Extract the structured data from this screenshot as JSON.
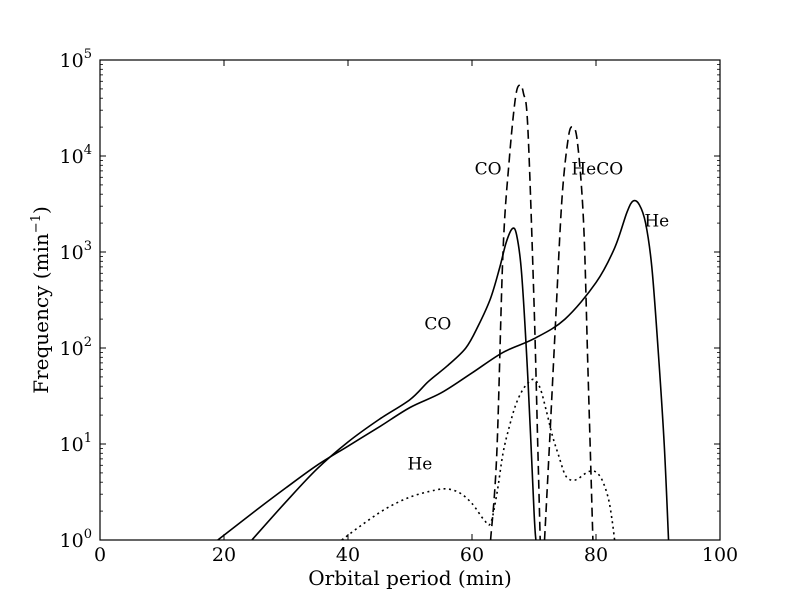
{
  "chart_data": {
    "type": "line",
    "title": "",
    "xlabel": "Orbital period (min)",
    "ylabel_main": "Frequency (min",
    "ylabel_sup": "−1",
    "ylabel_close": ")",
    "xlim": [
      0,
      100
    ],
    "ylim": [
      1,
      100000
    ],
    "yscale": "log",
    "grid": false,
    "legend": "none",
    "x_ticks": [
      {
        "value": 0,
        "label": "0"
      },
      {
        "value": 20,
        "label": "20"
      },
      {
        "value": 40,
        "label": "40"
      },
      {
        "value": 60,
        "label": "60"
      },
      {
        "value": 80,
        "label": "80"
      },
      {
        "value": 100,
        "label": "100"
      }
    ],
    "y_ticks": [
      {
        "value": 1,
        "base": "10",
        "exp": "0"
      },
      {
        "value": 10,
        "base": "10",
        "exp": "1"
      },
      {
        "value": 100,
        "base": "10",
        "exp": "2"
      },
      {
        "value": 1000,
        "base": "10",
        "exp": "3"
      },
      {
        "value": 10000,
        "base": "10",
        "exp": "4"
      },
      {
        "value": 100000,
        "base": "10",
        "exp": "5"
      }
    ],
    "series": [
      {
        "id": "he-solid",
        "style": "solid",
        "points": [
          [
            19,
            1
          ],
          [
            25,
            2
          ],
          [
            30,
            3.5
          ],
          [
            35,
            6
          ],
          [
            40,
            9.5
          ],
          [
            45,
            15
          ],
          [
            50,
            24
          ],
          [
            55,
            34
          ],
          [
            60,
            55
          ],
          [
            65,
            90
          ],
          [
            70,
            125
          ],
          [
            75,
            200
          ],
          [
            80,
            480
          ],
          [
            83,
            1100
          ],
          [
            85,
            2600
          ],
          [
            86,
            3400
          ],
          [
            87,
            3100
          ],
          [
            88,
            2000
          ],
          [
            89,
            700
          ],
          [
            90,
            100
          ],
          [
            91,
            10
          ],
          [
            91.7,
            1
          ]
        ]
      },
      {
        "id": "co-solid",
        "style": "solid",
        "points": [
          [
            24.5,
            1
          ],
          [
            30,
            2.5
          ],
          [
            35,
            5.5
          ],
          [
            40,
            10.5
          ],
          [
            45,
            18
          ],
          [
            50,
            29
          ],
          [
            53,
            45
          ],
          [
            56,
            65
          ],
          [
            59,
            100
          ],
          [
            61,
            170
          ],
          [
            63,
            330
          ],
          [
            64.5,
            700
          ],
          [
            65.5,
            1250
          ],
          [
            66.5,
            1750
          ],
          [
            67.2,
            1500
          ],
          [
            68,
            600
          ],
          [
            69,
            50
          ],
          [
            70,
            2
          ],
          [
            70.3,
            1
          ]
        ]
      },
      {
        "id": "co-dashed",
        "style": "dashed",
        "points": [
          [
            63,
            1
          ],
          [
            64,
            8
          ],
          [
            65,
            1000
          ],
          [
            66,
            9000
          ],
          [
            67,
            40000
          ],
          [
            67.7,
            55000
          ],
          [
            68.3,
            45000
          ],
          [
            69,
            20000
          ],
          [
            70,
            300
          ],
          [
            70.6,
            10
          ],
          [
            71,
            1
          ]
        ]
      },
      {
        "id": "heco-dashed",
        "style": "dashed",
        "points": [
          [
            71.7,
            1
          ],
          [
            72.5,
            10
          ],
          [
            73.5,
            200
          ],
          [
            74.5,
            3500
          ],
          [
            75.5,
            15000
          ],
          [
            76.2,
            20000
          ],
          [
            77,
            14000
          ],
          [
            78,
            2000
          ],
          [
            78.7,
            60
          ],
          [
            79.5,
            1
          ]
        ]
      },
      {
        "id": "he-dotted",
        "style": "dotted",
        "points": [
          [
            39,
            1
          ],
          [
            42,
            1.4
          ],
          [
            46,
            2.1
          ],
          [
            50,
            2.8
          ],
          [
            54,
            3.3
          ],
          [
            56,
            3.4
          ],
          [
            58,
            3.1
          ],
          [
            60,
            2.4
          ],
          [
            62,
            1.6
          ],
          [
            63,
            1.5
          ],
          [
            64,
            3
          ],
          [
            65,
            8
          ],
          [
            66,
            15
          ],
          [
            67,
            25
          ],
          [
            68,
            35
          ],
          [
            69,
            43
          ],
          [
            70,
            47
          ],
          [
            71,
            38
          ],
          [
            72,
            22
          ],
          [
            73,
            12
          ],
          [
            74,
            7.5
          ],
          [
            75,
            4.8
          ],
          [
            76,
            4.2
          ],
          [
            77,
            4.3
          ],
          [
            78,
            4.8
          ],
          [
            79,
            5.2
          ],
          [
            80,
            5.1
          ],
          [
            81,
            4.2
          ],
          [
            82,
            2.7
          ],
          [
            82.6,
            1.6
          ],
          [
            83,
            1
          ]
        ]
      }
    ],
    "annotations": [
      {
        "text": "CO",
        "x": 62.6,
        "y": 6400
      },
      {
        "text": "HeCO",
        "x": 80.2,
        "y": 6400
      },
      {
        "text": "He",
        "x": 89.8,
        "y": 1850
      },
      {
        "text": "CO",
        "x": 54.5,
        "y": 155
      },
      {
        "text": "He",
        "x": 51.6,
        "y": 5.4
      }
    ]
  }
}
